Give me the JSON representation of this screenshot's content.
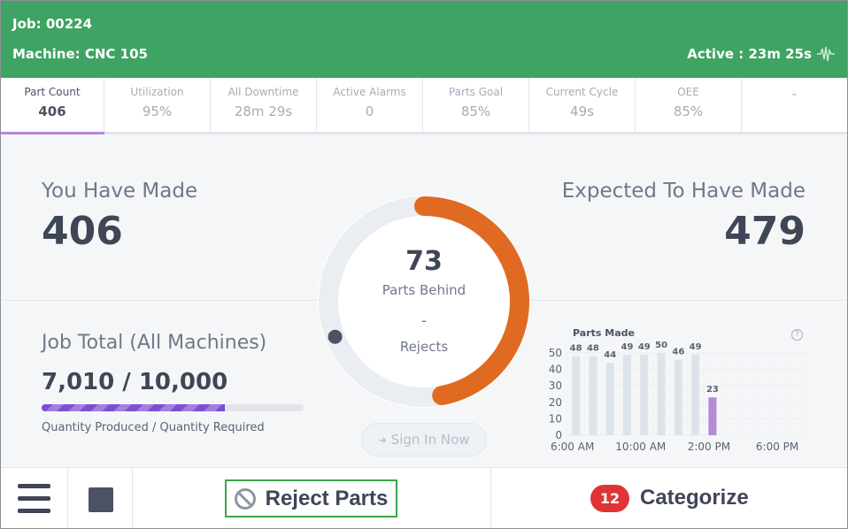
{
  "header": {
    "job": "Job: 00224",
    "machine": "Machine: CNC 105",
    "active": "Active : 23m 25s",
    "color": "#3ea363"
  },
  "metrics": [
    {
      "label": "Part Count",
      "value": "406"
    },
    {
      "label": "Utilization",
      "value": "95%"
    },
    {
      "label": "All Downtime",
      "value": "28m 29s"
    },
    {
      "label": "Active Alarms",
      "value": "0"
    },
    {
      "label": "Parts Goal",
      "value": "85%"
    },
    {
      "label": "Current Cycle",
      "value": "49s"
    },
    {
      "label": "OEE",
      "value": "85%"
    },
    {
      "label": "",
      "value": "-"
    }
  ],
  "main": {
    "made_label": "You Have Made",
    "made_value": "406",
    "expected_label": "Expected To Have Made",
    "expected_value": "479",
    "behind_value": "73",
    "behind_label": "Parts Behind",
    "rejects_value": "-",
    "rejects_label": "Rejects",
    "gauge_fraction": 0.47,
    "gauge_color": "#e06a22",
    "sign_in": "Sign In Now"
  },
  "job_total": {
    "label": "Job Total (All Machines)",
    "value": "7,010 / 10,000",
    "progress": 0.701,
    "caption": "Quantity Produced / Quantity Required"
  },
  "chart_data": {
    "type": "bar",
    "title": "Parts Made",
    "x_tick_labels": [
      "6:00 AM",
      "10:00 AM",
      "2:00 PM",
      "6:00 PM"
    ],
    "y_ticks": [
      0,
      10,
      20,
      30,
      40,
      50
    ],
    "ylim": [
      0,
      50
    ],
    "values": [
      48,
      48,
      44,
      49,
      49,
      50,
      46,
      49,
      23
    ],
    "highlight_index": 8,
    "bar_color": "#dde3ea",
    "highlight_color": "#b28ad6",
    "grid": true
  },
  "footer": {
    "reject_label": "Reject Parts",
    "categorize_count": "12",
    "categorize_label": "Categorize"
  }
}
